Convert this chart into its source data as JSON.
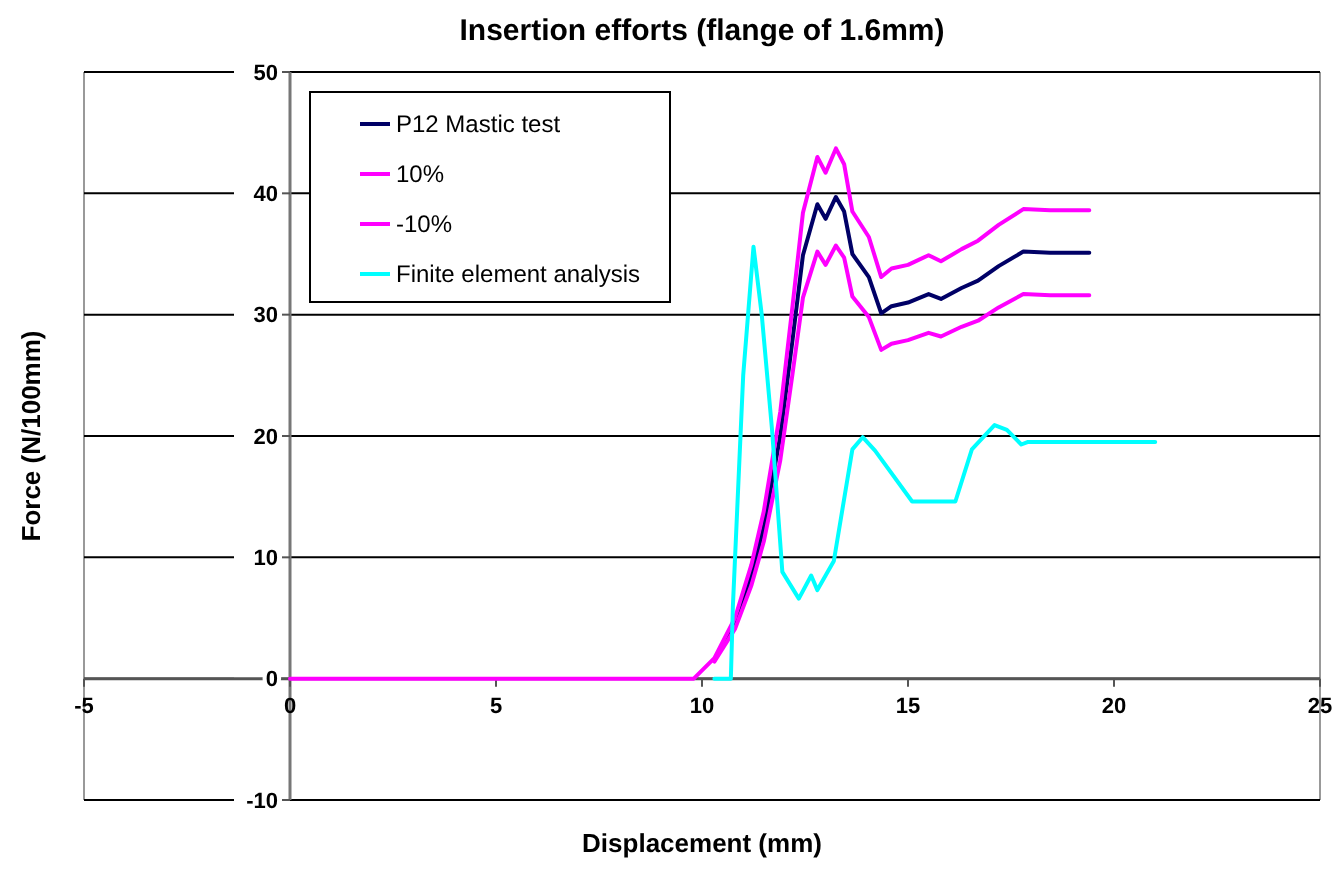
{
  "chart_data": {
    "type": "line",
    "title": "Insertion efforts (flange of 1.6mm)",
    "xlabel": "Displacement (mm)",
    "ylabel": "Force (N/100mm)",
    "xlim": [
      -5,
      25
    ],
    "xticks": [
      -5,
      0,
      5,
      10,
      15,
      20,
      25
    ],
    "ylim": [
      -10,
      50
    ],
    "yticks": [
      -10,
      0,
      10,
      20,
      30,
      40,
      50
    ],
    "grid": "y",
    "legend": "top left",
    "marker": "none",
    "line_style": "solid",
    "series": [
      {
        "name": "P12 Mastic test",
        "color": "#000066",
        "x": [
          10.3,
          10.8,
          11.2,
          11.5,
          11.9,
          12.2,
          12.45,
          12.8,
          13.0,
          13.25,
          13.45,
          13.65,
          14.05,
          14.35,
          14.6,
          15.0,
          15.5,
          15.8,
          16.3,
          16.7,
          17.2,
          17.8,
          18.45,
          19.4
        ],
        "values": [
          1.5,
          4.5,
          8.5,
          12.5,
          20,
          28,
          34.9,
          39.1,
          37.9,
          39.7,
          38.5,
          35,
          33.1,
          30.1,
          30.7,
          31,
          31.7,
          31.3,
          32.2,
          32.8,
          34,
          35.2,
          35.1,
          35.1
        ]
      },
      {
        "name": "10%",
        "color": "#ff00ff",
        "x": [
          0,
          9.8,
          10.3,
          10.8,
          11.2,
          11.5,
          11.9,
          12.2,
          12.45,
          12.8,
          13.0,
          13.25,
          13.45,
          13.65,
          14.05,
          14.35,
          14.6,
          15.0,
          15.5,
          15.8,
          16.3,
          16.7,
          17.2,
          17.8,
          18.45,
          19.4
        ],
        "values": [
          0,
          0,
          1.7,
          5,
          9.4,
          13.8,
          22,
          30.8,
          38.4,
          43,
          41.7,
          43.7,
          42.4,
          38.5,
          36.4,
          33.1,
          33.8,
          34.1,
          34.9,
          34.4,
          35.4,
          36.1,
          37.4,
          38.7,
          38.6,
          38.6
        ]
      },
      {
        "name": "-10%",
        "color": "#ff00ff",
        "x": [
          10.3,
          10.8,
          11.2,
          11.5,
          11.9,
          12.2,
          12.45,
          12.8,
          13.0,
          13.25,
          13.45,
          13.65,
          14.05,
          14.35,
          14.6,
          15.0,
          15.5,
          15.8,
          16.3,
          16.7,
          17.2,
          17.8,
          18.45,
          19.4
        ],
        "values": [
          1.4,
          4.1,
          7.7,
          11.3,
          18,
          25.2,
          31.4,
          35.2,
          34.1,
          35.7,
          34.7,
          31.5,
          29.8,
          27.1,
          27.6,
          27.9,
          28.5,
          28.2,
          29,
          29.5,
          30.6,
          31.7,
          31.6,
          31.6
        ]
      },
      {
        "name": "Finite element analysis",
        "color": "#00ffff",
        "x": [
          10.3,
          10.7,
          10.75,
          11.0,
          11.25,
          11.45,
          11.7,
          11.95,
          12.35,
          12.65,
          12.8,
          13.2,
          13.65,
          13.9,
          14.2,
          15.1,
          16.15,
          16.55,
          17.1,
          17.4,
          17.75,
          17.9,
          21.0
        ],
        "values": [
          0,
          0,
          6,
          25,
          35.6,
          30,
          20.5,
          8.8,
          6.6,
          8.5,
          7.3,
          9.7,
          18.9,
          19.9,
          18.8,
          14.6,
          14.6,
          18.9,
          20.9,
          20.5,
          19.3,
          19.5,
          19.5
        ]
      }
    ]
  }
}
